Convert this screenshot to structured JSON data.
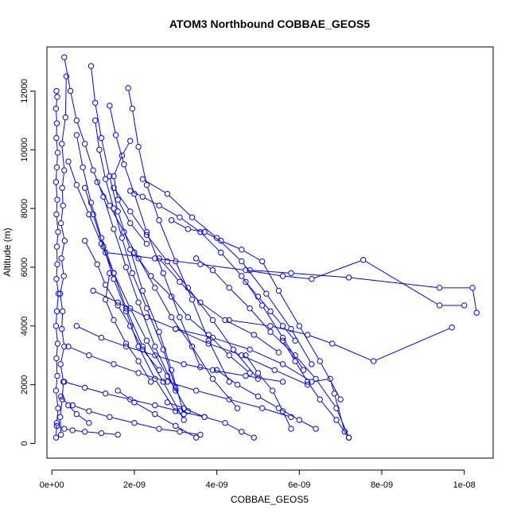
{
  "chart_data": {
    "type": "scatter",
    "title": "ATOM3 Northbound COBBAE_GEOS5",
    "xlabel": "COBBAE_GEOS5",
    "ylabel": "Altitude (m)",
    "xlim": [
      -1.2e-10,
      1.07e-08
    ],
    "ylim": [
      -500,
      13500
    ],
    "x_ticks": [
      0,
      2e-09,
      4e-09,
      6e-09,
      8e-09,
      1e-08
    ],
    "x_tick_labels": [
      "0e+00",
      "2e-09",
      "4e-09",
      "6e-09",
      "8e-09",
      "1e-08"
    ],
    "y_ticks": [
      0,
      2000,
      4000,
      6000,
      8000,
      10000,
      12000
    ],
    "y_tick_labels": [
      "0",
      "2000",
      "4000",
      "6000",
      "8000",
      "10000",
      "12000"
    ],
    "grid": false,
    "legend": "none",
    "style": {
      "color": "#0000ff",
      "marker": "open-circle",
      "connected": true
    },
    "series": [
      {
        "x": [
          1e-10,
          1.2e-10,
          1.5e-10,
          1e-10,
          1.3e-10,
          1.1e-10,
          1.4e-10,
          1e-10,
          1.2e-10,
          1.6e-10,
          1.1e-10,
          1.3e-10,
          1.2e-10,
          1.5e-10,
          1.1e-10,
          1.3e-10,
          1e-10,
          1.2e-10,
          1.4e-10,
          1.1e-10,
          1.2e-10,
          1e-10,
          1.3e-10,
          1.1e-10
        ],
        "y": [
          200,
          700,
          1200,
          1800,
          2300,
          2900,
          3400,
          4000,
          4500,
          5100,
          5600,
          6100,
          6700,
          7200,
          7800,
          8300,
          8900,
          9400,
          9900,
          10400,
          10900,
          11400,
          11800,
          12000
        ]
      },
      {
        "x": [
          2.2e-10,
          2e-10,
          2.5e-10,
          2.8e-10,
          2.1e-10,
          3e-10,
          2.4e-10,
          2.6e-10,
          2e-10,
          2.9e-10,
          2.3e-10,
          3.1e-10,
          2.2e-10,
          2.7e-10,
          2.5e-10,
          3e-10,
          2.4e-10,
          3.3e-10,
          3.5e-10
        ],
        "y": [
          300,
          900,
          1500,
          2100,
          2700,
          3300,
          3900,
          4500,
          5100,
          5700,
          6300,
          6900,
          7500,
          8100,
          8700,
          9300,
          10200,
          11100,
          12500
        ]
      },
      {
        "x": [
          3e-10,
          4.5e-10,
          6e-10,
          8e-10,
          1e-09,
          1.25e-09,
          1.5e-09,
          1.8e-09,
          2.1e-09,
          2.5e-09,
          3e-09
        ],
        "y": [
          13150,
          12000,
          11000,
          10200,
          9300,
          8400,
          7300,
          6000,
          4800,
          3300,
          1800
        ]
      },
      {
        "x": [
          9.5e-10,
          1.05e-09,
          1.2e-09,
          1.4e-09,
          1.6e-09,
          1.9e-09,
          2.2e-09,
          2.6e-09,
          2.9e-09,
          3.2e-09
        ],
        "y": [
          12850,
          11600,
          10400,
          9100,
          7900,
          6600,
          5200,
          3800,
          2500,
          1000
        ]
      },
      {
        "x": [
          1.05e-09,
          1.15e-09,
          1.3e-09,
          1.5e-09,
          1.7e-09,
          1.95e-09,
          2.3e-09,
          2.7e-09,
          3e-09
        ],
        "y": [
          11000,
          10000,
          9000,
          8000,
          7000,
          5800,
          4600,
          3200,
          1900
        ]
      },
      {
        "x": [
          1.4e-09,
          1.55e-09,
          1.75e-09,
          2e-09,
          2.3e-09,
          2.7e-09,
          3.1e-09,
          3.6e-09
        ],
        "y": [
          11500,
          10500,
          9500,
          8500,
          7200,
          5800,
          4300,
          2600
        ]
      },
      {
        "x": [
          1.85e-09,
          1.95e-09,
          2.1e-09,
          2.3e-09,
          2.6e-09,
          3e-09,
          3.4e-09,
          3.8e-09,
          4.3e-09
        ],
        "y": [
          12100,
          11400,
          10100,
          8800,
          7600,
          6200,
          4900,
          3500,
          2100
        ]
      },
      {
        "x": [
          1.9e-09,
          2.2e-09,
          2.6e-09,
          3.1e-09,
          3.6e-09,
          4.1e-09,
          4.6e-09,
          5.1e-09,
          5.6e-09,
          6.1e-09
        ],
        "y": [
          8600,
          8400,
          8100,
          7700,
          7200,
          6500,
          5700,
          4700,
          3600,
          2500
        ]
      },
      {
        "x": [
          2.2e-09,
          2.8e-09,
          3.4e-09,
          4e-09,
          4.6e-09,
          5.2e-09,
          5.8e-09,
          6.3e-09
        ],
        "y": [
          9000,
          8500,
          7700,
          7000,
          6200,
          5100,
          3900,
          2700
        ]
      },
      {
        "x": [
          2.9e-09,
          3.3e-09,
          3.7e-09,
          4.1e-09,
          4.6e-09,
          5.1e-09,
          5.5e-09,
          6e-09,
          6.5e-09,
          7e-09
        ],
        "y": [
          7600,
          7300,
          7200,
          6900,
          6600,
          6200,
          5200,
          4000,
          2800,
          1500
        ]
      },
      {
        "x": [
          3.5e-09,
          3.9e-09,
          4.3e-09,
          4.8e-09,
          5.3e-09,
          5.9e-09,
          6.4e-09,
          6.9e-09,
          7.2e-09
        ],
        "y": [
          6300,
          5900,
          5300,
          4600,
          3800,
          3000,
          2200,
          1200,
          200
        ]
      },
      {
        "x": [
          4.8e-09,
          5.8e-09,
          7.2e-09,
          9.4e-09,
          1.02e-08,
          1.03e-08
        ],
        "y": [
          5900,
          5800,
          5650,
          5300,
          5300,
          4450
        ]
      },
      {
        "x": [
          1.3e-09,
          2.5e-09,
          3.6e-09,
          4.7e-09,
          5.6e-09,
          6.3e-09,
          7.55e-09,
          9.4e-09,
          1e-08
        ],
        "y": [
          6500,
          6300,
          6100,
          5900,
          5700,
          5600,
          6250,
          4700,
          4700
        ]
      },
      {
        "x": [
          4.3e-09,
          5.3e-09,
          6.2e-09,
          6.8e-09,
          7.8e-09,
          9.7e-09
        ],
        "y": [
          4200,
          4000,
          3700,
          3400,
          2800,
          3950
        ]
      },
      {
        "x": [
          3e-09,
          3.9e-09,
          4.8e-09,
          5.6e-09,
          6.3e-09,
          6.75e-09,
          6.85e-09,
          7.1e-09
        ],
        "y": [
          3900,
          3600,
          3200,
          2700,
          2100,
          2200,
          1700,
          400
        ]
      },
      {
        "x": [
          4e-10,
          6e-10,
          9e-10,
          1.2e-09,
          1.5e-09,
          1.9e-09,
          2.3e-09,
          2.8e-09,
          3.3e-09
        ],
        "y": [
          9600,
          8800,
          7800,
          6800,
          5800,
          4600,
          3500,
          2300,
          1100
        ]
      },
      {
        "x": [
          6e-10,
          7.5e-10,
          9.5e-10,
          1.2e-09,
          1.5e-09,
          1.8e-09,
          2.2e-09,
          2.7e-09,
          3.2e-09
        ],
        "y": [
          10500,
          9400,
          8200,
          7000,
          5800,
          4600,
          3300,
          2100,
          800
        ]
      },
      {
        "x": [
          8e-10,
          1e-09,
          1.25e-09,
          1.5e-09,
          1.8e-09,
          2.1e-09,
          2.5e-09,
          3e-09
        ],
        "y": [
          8700,
          7800,
          6700,
          5600,
          4500,
          3300,
          2200,
          1100
        ]
      },
      {
        "x": [
          1.1e-09,
          1.4e-09,
          1.75e-09,
          2.1e-09,
          2.5e-09,
          2.9e-09,
          3.4e-09,
          3.9e-09,
          4.5e-09
        ],
        "y": [
          8900,
          8100,
          7200,
          6300,
          5300,
          4300,
          3300,
          2200,
          1200
        ]
      },
      {
        "x": [
          1.5e-09,
          1.9e-09,
          2.3e-09,
          2.8e-09,
          3.3e-09,
          3.9e-09,
          4.4e-09,
          5e-09
        ],
        "y": [
          8700,
          7900,
          7100,
          6200,
          5300,
          4200,
          3200,
          2200
        ]
      },
      {
        "x": [
          1e-09,
          1.6e-09,
          2.3e-09,
          3e-09,
          3.8e-09,
          4.6e-09,
          5.4e-09,
          6.2e-09
        ],
        "y": [
          5200,
          4800,
          4300,
          3900,
          3400,
          3000,
          2500,
          2000
        ]
      },
      {
        "x": [
          6e-10,
          1.2e-09,
          1.8e-09,
          2.5e-09,
          3.2e-09,
          3.9e-09,
          4.7e-09,
          5.6e-09
        ],
        "y": [
          4000,
          3600,
          3300,
          3000,
          2700,
          2500,
          2300,
          2100
        ]
      },
      {
        "x": [
          4e-10,
          9e-10,
          1.5e-09,
          2.1e-09,
          2.8e-09,
          3.5e-09,
          4.3e-09,
          5.1e-09,
          5.8e-09
        ],
        "y": [
          3300,
          3000,
          2700,
          2400,
          2100,
          1800,
          1500,
          1200,
          900
        ]
      },
      {
        "x": [
          3e-10,
          8e-10,
          1.3e-09,
          1.9e-09,
          2.5e-09,
          3.1e-09,
          3.7e-09
        ],
        "y": [
          2100,
          1900,
          1700,
          1500,
          1300,
          1100,
          900
        ]
      },
      {
        "x": [
          5e-10,
          9e-10,
          1.4e-09,
          2e-09,
          2.6e-09,
          3.1e-09,
          3.6e-09
        ],
        "y": [
          1300,
          1100,
          900,
          700,
          500,
          400,
          300
        ]
      },
      {
        "x": [
          1.6e-09,
          2e-09,
          2.5e-09,
          3e-09,
          3.5e-09
        ],
        "y": [
          1800,
          1400,
          1000,
          600,
          200
        ]
      },
      {
        "x": [
          2.8e-09,
          3.2e-09,
          3.7e-09,
          4.2e-09,
          4.6e-09,
          4.9e-09
        ],
        "y": [
          1400,
          1200,
          900,
          700,
          400,
          200
        ]
      },
      {
        "x": [
          4e-09,
          4.5e-09,
          5e-09,
          5.5e-09,
          6e-09,
          6.4e-09
        ],
        "y": [
          2500,
          2000,
          1600,
          1200,
          800,
          500
        ]
      },
      {
        "x": [
          5.6e-09,
          5.9e-09,
          6.2e-09,
          6.5e-09,
          6.9e-09,
          7.2e-09
        ],
        "y": [
          3500,
          2800,
          2100,
          1500,
          800,
          200
        ]
      },
      {
        "x": [
          4.7e-09,
          5e-09,
          5.35e-09,
          5.6e-09,
          5.8e-09
        ],
        "y": [
          3000,
          2400,
          1800,
          1100,
          500
        ]
      },
      {
        "x": [
          1.4e-09,
          1.3e-09,
          1.5e-09,
          1.8e-09,
          2.1e-09,
          2.4e-09
        ],
        "y": [
          5800,
          4900,
          4200,
          3400,
          2800,
          2100
        ]
      },
      {
        "x": [
          8e-10,
          1.1e-09,
          1.3e-09,
          1.6e-09,
          1.9e-09,
          2.2e-09,
          2.6e-09
        ],
        "y": [
          6900,
          6100,
          5400,
          4700,
          4000,
          3200,
          2500
        ]
      },
      {
        "x": [
          2e-09,
          2.4e-09,
          2.9e-09,
          3.3e-09,
          3.8e-09,
          4.3e-09,
          4.8e-09
        ],
        "y": [
          6500,
          5700,
          5000,
          4300,
          3700,
          3000,
          2400
        ]
      },
      {
        "x": [
          2.6e-09,
          3.1e-09,
          3.6e-09,
          4.2e-09,
          4.9e-09,
          5.5e-09
        ],
        "y": [
          6300,
          5500,
          4800,
          4200,
          3700,
          3100
        ]
      },
      {
        "x": [
          1.2e-10,
          3e-10,
          5e-10,
          8e-10,
          1.2e-09,
          1.6e-09
        ],
        "y": [
          600,
          500,
          450,
          400,
          350,
          300
        ]
      },
      {
        "x": [
          2.2e-10,
          4e-10,
          6e-10,
          9e-10
        ],
        "y": [
          1600,
          1300,
          1000,
          700
        ]
      },
      {
        "x": [
          1.9e-09,
          1.7e-09,
          1.5e-09,
          1.6e-09,
          1.9e-09,
          2.3e-09
        ],
        "y": [
          10300,
          9800,
          9100,
          8300,
          7500,
          6800
        ]
      },
      {
        "x": [
          4.7e-09,
          5e-09,
          5.3e-09,
          5.6e-09,
          5.9e-09
        ],
        "y": [
          5500,
          5000,
          4500,
          4000,
          3500
        ]
      }
    ]
  }
}
